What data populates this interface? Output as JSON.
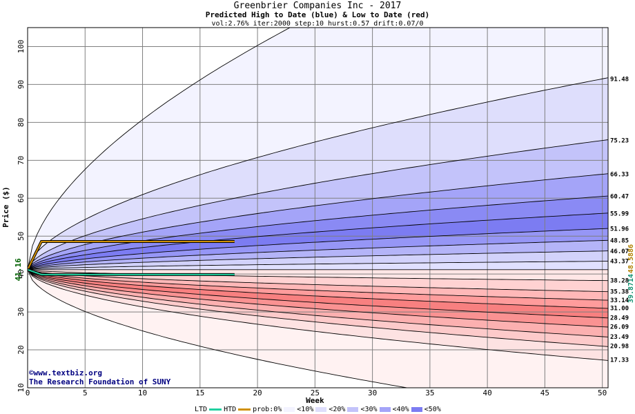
{
  "titles": {
    "title": "Greenbrier Companies Inc - 2017",
    "subtitle": "Predicted High to Date (blue) &  Low to Date (red)",
    "params": "vol:2.76% iter:2000 step:10 hurst:0.57 drift:0.07/0"
  },
  "watermark": {
    "line1": "©www.textbiz.org",
    "line2": "The Research Foundation of SUNY"
  },
  "legend": {
    "ltd_label": "LTD",
    "htd_label": "HTD",
    "prob_label": "prob:0%",
    "bins": [
      "<10%",
      "<20%",
      "<30%",
      "<40%",
      "<50%"
    ],
    "colors": [
      "#f3f3ff",
      "#dedefc",
      "#c3c3fa",
      "#a4a4f8",
      "#7c7cf2"
    ],
    "ltd_color": "#20d0a0",
    "htd_color": "#d09000"
  },
  "chart_data": {
    "type": "area",
    "xlabel": "Week",
    "ylabel": "Price ($)",
    "xlim": [
      0,
      50.5
    ],
    "ylim": [
      10,
      105
    ],
    "x_ticks": [
      0,
      5,
      10,
      15,
      20,
      25,
      30,
      35,
      40,
      45,
      50
    ],
    "y_ticks": [
      10,
      20,
      30,
      40,
      50,
      60,
      70,
      80,
      90,
      100
    ],
    "start_price": 41.16,
    "start_price_label": "41.16",
    "current_low_label": "39.8714",
    "current_high_label": "48.5886",
    "current_low": 39.8714,
    "current_high": 48.5886,
    "current_week": 18,
    "upper_end_labels": [
      "91.48",
      "75.23",
      "66.33",
      "60.47",
      "55.99",
      "51.96",
      "48.85",
      "46.07",
      "43.37"
    ],
    "upper_end_values": [
      91.48,
      75.23,
      66.33,
      60.47,
      55.99,
      51.96,
      48.85,
      46.07,
      43.37
    ],
    "lower_end_labels": [
      "38.28",
      "35.38",
      "33.14",
      "31.00",
      "28.49",
      "26.09",
      "23.49",
      "20.98",
      "17.33"
    ],
    "lower_end_values": [
      38.28,
      35.38,
      33.14,
      31.0,
      28.49,
      26.09,
      23.49,
      20.98,
      17.33
    ],
    "upper_band_colors": [
      "#f3f3ff",
      "#dedefc",
      "#c3c3fa",
      "#a4a4f8",
      "#8a8af4",
      "#7c7cf2",
      "#9696f6",
      "#b4b4f8",
      "#d2d2fb"
    ],
    "lower_band_colors": [
      "#ffe6e6",
      "#ffd2d2",
      "#ffb8b8",
      "#ff9c9c",
      "#f88080",
      "#fa9292",
      "#fcb0b0",
      "#fdcaca",
      "#fde2e2",
      "#fff2f2"
    ],
    "outer_upper_value": 105,
    "outer_lower_value": 10,
    "grid": true
  }
}
